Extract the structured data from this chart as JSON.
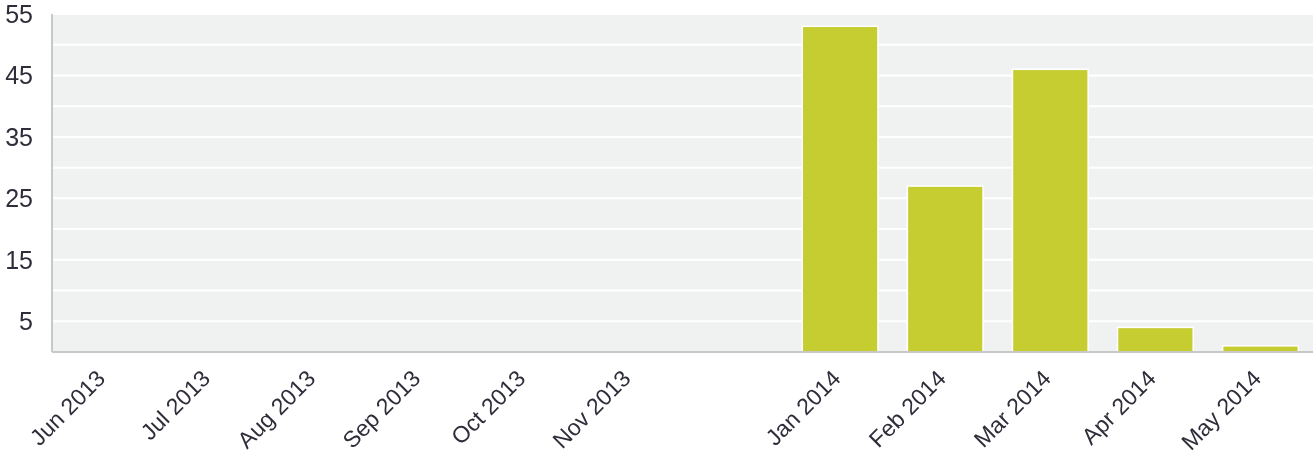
{
  "chart_data": {
    "type": "bar",
    "categories": [
      "Jun 2013",
      "Jul 2013",
      "Aug 2013",
      "Sep 2013",
      "Oct 2013",
      "Nov 2013",
      null,
      "Jan 2014",
      "Feb 2014",
      "Mar 2014",
      "Apr 2014",
      "May 2014"
    ],
    "values": [
      null,
      null,
      null,
      null,
      null,
      null,
      null,
      53,
      27,
      46,
      4,
      1
    ],
    "color": "#c6cd31",
    "ylim": [
      0,
      55
    ],
    "yticks": [
      5,
      {
        "value": 10,
        "label": null
      },
      15,
      {
        "value": 20,
        "label": null
      },
      25,
      {
        "value": 30,
        "label": null
      },
      35,
      {
        "value": 40,
        "label": null
      },
      45,
      {
        "value": 50,
        "label": null
      },
      55
    ],
    "grid": "y"
  }
}
